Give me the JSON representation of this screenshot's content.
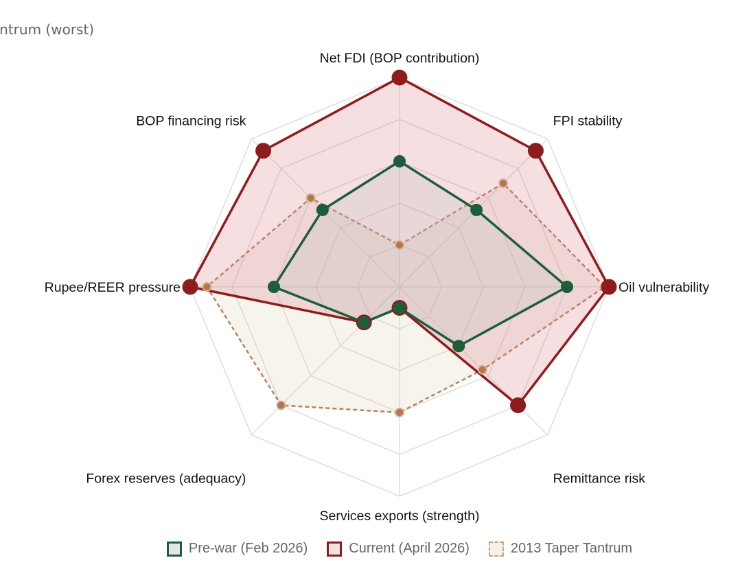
{
  "caption": "Tantrum (worst)",
  "chart_data": {
    "type": "radar",
    "scale": [
      0,
      5
    ],
    "grid_levels": 5,
    "categories": [
      "Net FDI (BOP contribution)",
      "FPI stability",
      "Oil vulnerability",
      "Remittance risk",
      "Services exports (strength)",
      "Forex reserves (adequacy)",
      "Rupee/REER pressure",
      "BOP financing risk"
    ],
    "series": [
      {
        "name": "2013 Taper Tantrum",
        "values": [
          1.0,
          3.5,
          4.9,
          2.8,
          3.0,
          4.0,
          4.6,
          3.0
        ],
        "color": "#b8825c",
        "fill": "rgba(218,203,178,0.22)",
        "dashed": true
      },
      {
        "name": "Current (April 2026)",
        "values": [
          5.0,
          4.6,
          5.0,
          4.0,
          0.5,
          1.2,
          5.0,
          4.6
        ],
        "color": "#8e1c1c",
        "fill": "rgba(215,120,130,0.24)",
        "dashed": false
      },
      {
        "name": "Pre-war (Feb 2026)",
        "values": [
          3.0,
          2.6,
          4.0,
          2.0,
          0.5,
          1.2,
          3.0,
          2.6
        ],
        "color": "#1c5e3c",
        "fill": "rgba(180,185,185,0.22)",
        "dashed": false
      }
    ],
    "legend": [
      {
        "name": "Pre-war (Feb 2026)",
        "color": "#1c5e3c",
        "fill": "#e4e6e4",
        "dashed": false
      },
      {
        "name": "Current (April 2026)",
        "color": "#8e1c1c",
        "fill": "#f1e2e2",
        "dashed": false
      },
      {
        "name": "2013 Taper Tantrum",
        "color": "#c9a386",
        "fill": "#f7f1ea",
        "dashed": true
      }
    ]
  }
}
